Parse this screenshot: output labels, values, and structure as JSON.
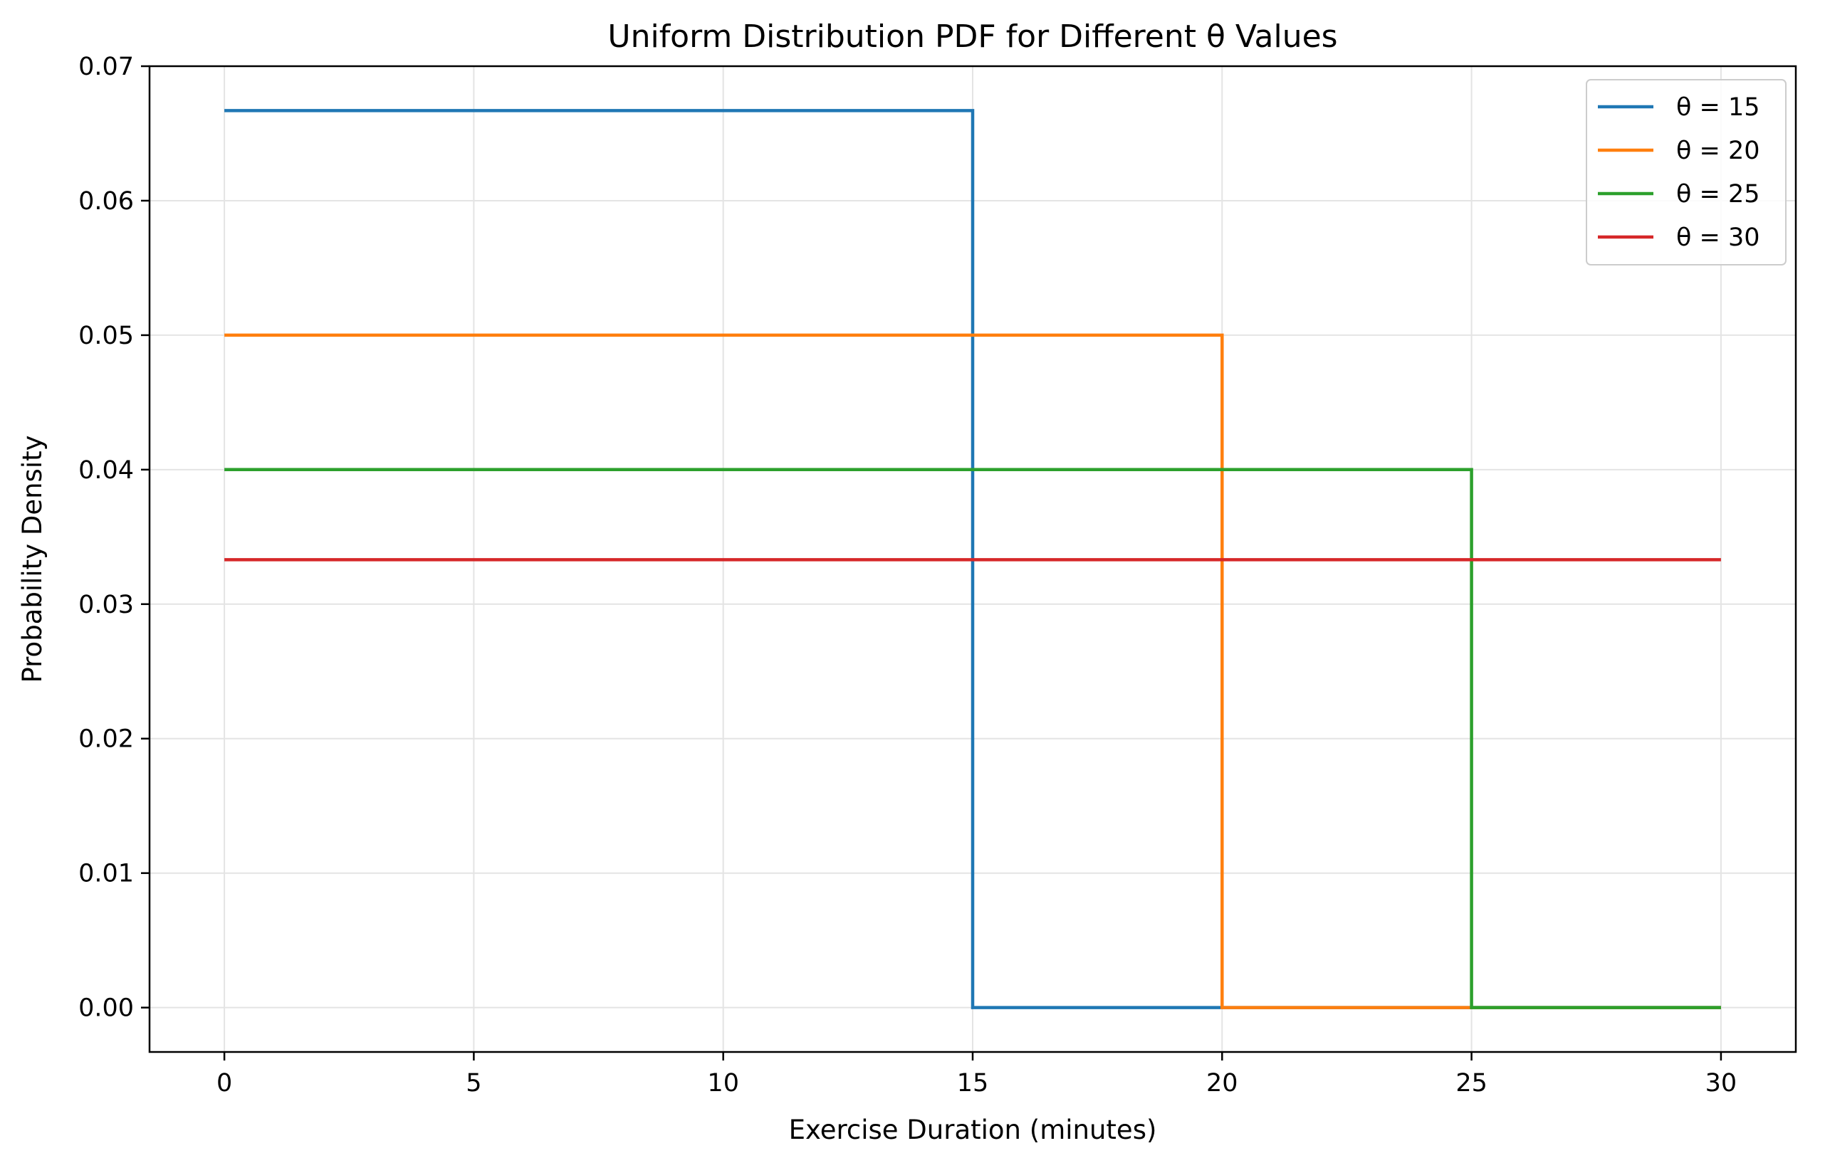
{
  "chart_data": {
    "type": "line",
    "title": "Uniform Distribution PDF for Different θ Values",
    "xlabel": "Exercise Duration (minutes)",
    "ylabel": "Probability Density",
    "xlim": [
      -1.5,
      31.5
    ],
    "ylim": [
      -0.0033,
      0.07
    ],
    "x_ticks": [
      0,
      5,
      10,
      15,
      20,
      25,
      30
    ],
    "x_tick_labels": [
      "0",
      "5",
      "10",
      "15",
      "20",
      "25",
      "30"
    ],
    "y_ticks": [
      0.0,
      0.01,
      0.02,
      0.03,
      0.04,
      0.05,
      0.06,
      0.07
    ],
    "y_tick_labels": [
      "0.00",
      "0.01",
      "0.02",
      "0.03",
      "0.04",
      "0.05",
      "0.06",
      "0.07"
    ],
    "grid": true,
    "legend_position": "top-right",
    "series": [
      {
        "name": "θ = 15",
        "theta": 15,
        "color": "#1f77b4",
        "x": [
          0,
          15,
          15,
          30
        ],
        "y": [
          0.0667,
          0.0667,
          0,
          0
        ]
      },
      {
        "name": "θ = 20",
        "theta": 20,
        "color": "#ff7f0e",
        "x": [
          0,
          20,
          20,
          30
        ],
        "y": [
          0.05,
          0.05,
          0,
          0
        ]
      },
      {
        "name": "θ = 25",
        "theta": 25,
        "color": "#2ca02c",
        "x": [
          0,
          25,
          25,
          30
        ],
        "y": [
          0.04,
          0.04,
          0,
          0
        ]
      },
      {
        "name": "θ = 30",
        "theta": 30,
        "color": "#d62728",
        "x": [
          0,
          30
        ],
        "y": [
          0.0333,
          0.0333
        ]
      }
    ]
  }
}
